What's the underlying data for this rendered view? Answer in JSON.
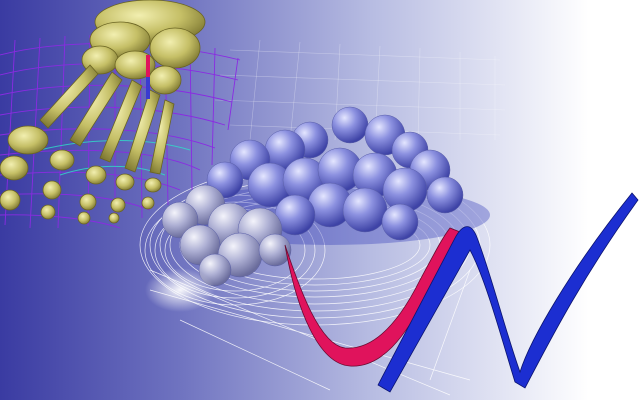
{
  "scene": {
    "background_gradient": [
      "#3a3ba2",
      "#6f73c0",
      "#b7bce2",
      "#ffffff"
    ],
    "elements": [
      {
        "name": "foot-skeleton",
        "icon": "foot-bones-icon",
        "color": "#c9c574"
      },
      {
        "name": "mesh-grid",
        "icon": "wire-mesh-icon",
        "color": "#7b2fd8"
      },
      {
        "name": "molecule-blobs",
        "icon": "molecule-icon",
        "color": "#7c82d9"
      },
      {
        "name": "contour-lines",
        "icon": "contour-icon",
        "color": "#ffffff"
      },
      {
        "name": "n-logo",
        "icon": "vn-logo-icon",
        "colors": [
          "#e0135c",
          "#1c2ed1"
        ]
      }
    ]
  }
}
